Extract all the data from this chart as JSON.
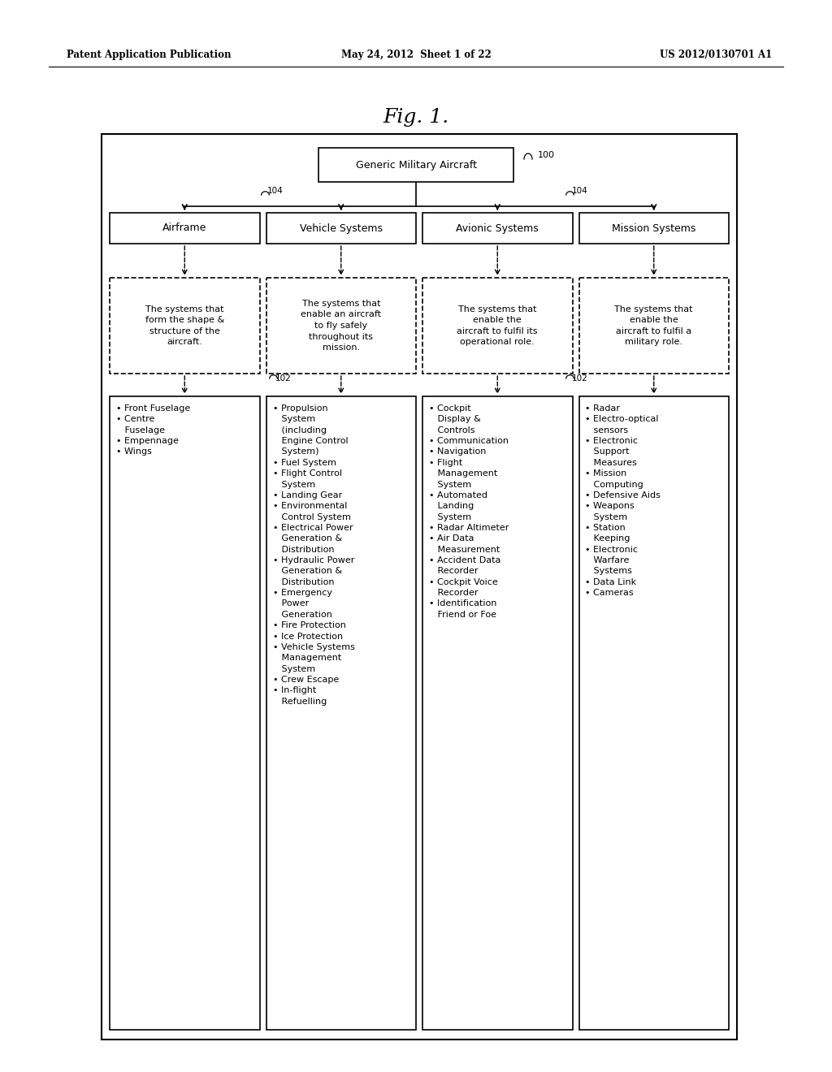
{
  "bg_color": "#ffffff",
  "text_color": "#000000",
  "header_left": "Patent Application Publication",
  "header_mid": "May 24, 2012  Sheet 1 of 22",
  "header_right": "US 2012/0130701 A1",
  "fig_title": "Fig. 1.",
  "top_box_label": "Generic Military Aircraft",
  "ref_100": "100",
  "ref_104a": "104",
  "ref_104b": "104",
  "ref_102a": "102",
  "ref_102b": "102",
  "level1_labels": [
    "Airframe",
    "Vehicle Systems",
    "Avionic Systems",
    "Mission Systems"
  ],
  "level2_texts": [
    "The systems that\nform the shape &\nstructure of the\naircraft.",
    "The systems that\nenable an aircraft\nto fly safely\nthroughout its\nmission.",
    "The systems that\nenable the\naircraft to fulfil its\noperational role.",
    "The systems that\nenable the\naircraft to fulfil a\nmilitary role."
  ],
  "level3_texts": [
    "• Front Fuselage\n• Centre\n   Fuselage\n• Empennage\n• Wings",
    "• Propulsion\n   System\n   (including\n   Engine Control\n   System)\n• Fuel System\n• Flight Control\n   System\n• Landing Gear\n• Environmental\n   Control System\n• Electrical Power\n   Generation &\n   Distribution\n• Hydraulic Power\n   Generation &\n   Distribution\n• Emergency\n   Power\n   Generation\n• Fire Protection\n• Ice Protection\n• Vehicle Systems\n   Management\n   System\n• Crew Escape\n• In-flight\n   Refuelling",
    "• Cockpit\n   Display &\n   Controls\n• Communication\n• Navigation\n• Flight\n   Management\n   System\n• Automated\n   Landing\n   System\n• Radar Altimeter\n• Air Data\n   Measurement\n• Accident Data\n   Recorder\n• Cockpit Voice\n   Recorder\n• Identification\n   Friend or Foe",
    "• Radar\n• Electro-optical\n   sensors\n• Electronic\n   Support\n   Measures\n• Mission\n   Computing\n• Defensive Aids\n• Weapons\n   System\n• Station\n   Keeping\n• Electronic\n   Warfare\n   Systems\n• Data Link\n• Cameras"
  ]
}
